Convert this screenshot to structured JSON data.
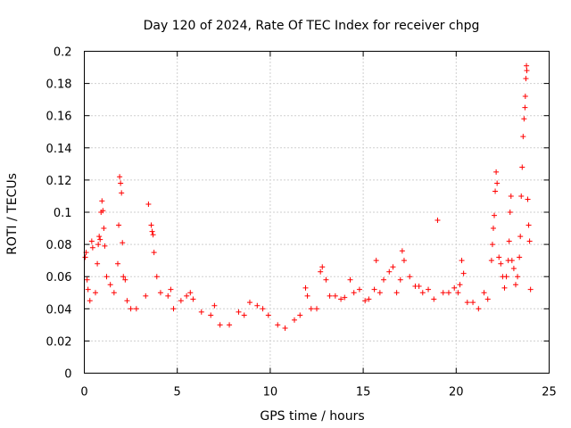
{
  "chart_data": {
    "type": "scatter",
    "title": "Day 120 of 2024, Rate Of TEC Index for receiver chpg",
    "xlabel": "GPS time / hours",
    "ylabel": "ROTI / TECUs",
    "xlim": [
      0,
      25
    ],
    "ylim": [
      0,
      0.2
    ],
    "xticks": [
      0,
      5,
      10,
      15,
      20,
      25
    ],
    "xtick_labels": [
      "0",
      "5",
      "10",
      "15",
      "20",
      "25"
    ],
    "yticks": [
      0,
      0.02,
      0.04,
      0.06,
      0.08,
      0.1,
      0.12,
      0.14,
      0.16,
      0.18,
      0.2
    ],
    "ytick_labels": [
      "0",
      "0.02",
      "0.04",
      "0.06",
      "0.08",
      "0.1",
      "0.12",
      "0.14",
      "0.16",
      "0.18",
      "0.2"
    ],
    "grid": true,
    "marker": "+",
    "color": "#ff0000",
    "series": [
      {
        "name": "ROTI",
        "points": [
          [
            0.05,
            0.072
          ],
          [
            0.1,
            0.075
          ],
          [
            0.15,
            0.058
          ],
          [
            0.2,
            0.052
          ],
          [
            0.3,
            0.045
          ],
          [
            0.4,
            0.082
          ],
          [
            0.45,
            0.078
          ],
          [
            0.6,
            0.05
          ],
          [
            0.7,
            0.068
          ],
          [
            0.75,
            0.08
          ],
          [
            0.8,
            0.085
          ],
          [
            0.85,
            0.083
          ],
          [
            0.9,
            0.1
          ],
          [
            0.95,
            0.107
          ],
          [
            1.0,
            0.101
          ],
          [
            1.05,
            0.09
          ],
          [
            1.1,
            0.079
          ],
          [
            1.2,
            0.06
          ],
          [
            1.4,
            0.055
          ],
          [
            1.6,
            0.05
          ],
          [
            1.8,
            0.068
          ],
          [
            1.85,
            0.092
          ],
          [
            1.9,
            0.122
          ],
          [
            1.95,
            0.118
          ],
          [
            2.0,
            0.112
          ],
          [
            2.05,
            0.081
          ],
          [
            2.1,
            0.06
          ],
          [
            2.2,
            0.058
          ],
          [
            2.3,
            0.045
          ],
          [
            2.5,
            0.04
          ],
          [
            2.8,
            0.04
          ],
          [
            3.3,
            0.048
          ],
          [
            3.45,
            0.105
          ],
          [
            3.6,
            0.092
          ],
          [
            3.65,
            0.088
          ],
          [
            3.7,
            0.086
          ],
          [
            3.75,
            0.075
          ],
          [
            3.9,
            0.06
          ],
          [
            4.1,
            0.05
          ],
          [
            4.5,
            0.048
          ],
          [
            4.65,
            0.052
          ],
          [
            4.8,
            0.04
          ],
          [
            5.2,
            0.045
          ],
          [
            5.5,
            0.048
          ],
          [
            5.7,
            0.05
          ],
          [
            5.85,
            0.046
          ],
          [
            6.3,
            0.038
          ],
          [
            6.8,
            0.036
          ],
          [
            7.0,
            0.042
          ],
          [
            7.3,
            0.03
          ],
          [
            7.8,
            0.03
          ],
          [
            8.3,
            0.038
          ],
          [
            8.6,
            0.036
          ],
          [
            8.9,
            0.044
          ],
          [
            9.3,
            0.042
          ],
          [
            9.6,
            0.04
          ],
          [
            9.9,
            0.036
          ],
          [
            10.4,
            0.03
          ],
          [
            10.8,
            0.028
          ],
          [
            11.3,
            0.033
          ],
          [
            11.6,
            0.036
          ],
          [
            11.9,
            0.053
          ],
          [
            12.0,
            0.048
          ],
          [
            12.2,
            0.04
          ],
          [
            12.5,
            0.04
          ],
          [
            12.7,
            0.063
          ],
          [
            12.8,
            0.066
          ],
          [
            13.0,
            0.058
          ],
          [
            13.2,
            0.048
          ],
          [
            13.5,
            0.048
          ],
          [
            13.8,
            0.046
          ],
          [
            14.0,
            0.047
          ],
          [
            14.3,
            0.058
          ],
          [
            14.5,
            0.05
          ],
          [
            14.8,
            0.052
          ],
          [
            15.1,
            0.045
          ],
          [
            15.3,
            0.046
          ],
          [
            15.6,
            0.052
          ],
          [
            15.7,
            0.07
          ],
          [
            15.9,
            0.05
          ],
          [
            16.1,
            0.058
          ],
          [
            16.4,
            0.063
          ],
          [
            16.6,
            0.066
          ],
          [
            16.8,
            0.05
          ],
          [
            17.0,
            0.058
          ],
          [
            17.1,
            0.076
          ],
          [
            17.2,
            0.07
          ],
          [
            17.5,
            0.06
          ],
          [
            17.8,
            0.054
          ],
          [
            18.0,
            0.054
          ],
          [
            18.2,
            0.05
          ],
          [
            18.5,
            0.052
          ],
          [
            18.8,
            0.046
          ],
          [
            19.0,
            0.095
          ],
          [
            19.3,
            0.05
          ],
          [
            19.6,
            0.05
          ],
          [
            19.9,
            0.053
          ],
          [
            20.1,
            0.05
          ],
          [
            20.2,
            0.055
          ],
          [
            20.3,
            0.07
          ],
          [
            20.4,
            0.062
          ],
          [
            20.6,
            0.044
          ],
          [
            20.9,
            0.044
          ],
          [
            21.2,
            0.04
          ],
          [
            21.5,
            0.05
          ],
          [
            21.7,
            0.046
          ],
          [
            21.9,
            0.07
          ],
          [
            21.95,
            0.08
          ],
          [
            22.0,
            0.09
          ],
          [
            22.05,
            0.098
          ],
          [
            22.1,
            0.113
          ],
          [
            22.15,
            0.125
          ],
          [
            22.2,
            0.118
          ],
          [
            22.3,
            0.072
          ],
          [
            22.4,
            0.068
          ],
          [
            22.5,
            0.06
          ],
          [
            22.6,
            0.053
          ],
          [
            22.7,
            0.06
          ],
          [
            22.8,
            0.07
          ],
          [
            22.85,
            0.082
          ],
          [
            22.9,
            0.1
          ],
          [
            22.95,
            0.11
          ],
          [
            23.0,
            0.07
          ],
          [
            23.1,
            0.065
          ],
          [
            23.2,
            0.055
          ],
          [
            23.3,
            0.06
          ],
          [
            23.4,
            0.072
          ],
          [
            23.45,
            0.085
          ],
          [
            23.5,
            0.11
          ],
          [
            23.55,
            0.128
          ],
          [
            23.6,
            0.147
          ],
          [
            23.65,
            0.158
          ],
          [
            23.7,
            0.165
          ],
          [
            23.72,
            0.172
          ],
          [
            23.75,
            0.183
          ],
          [
            23.78,
            0.191
          ],
          [
            23.8,
            0.188
          ],
          [
            23.85,
            0.108
          ],
          [
            23.9,
            0.092
          ],
          [
            23.95,
            0.082
          ],
          [
            24.0,
            0.052
          ]
        ]
      }
    ]
  }
}
